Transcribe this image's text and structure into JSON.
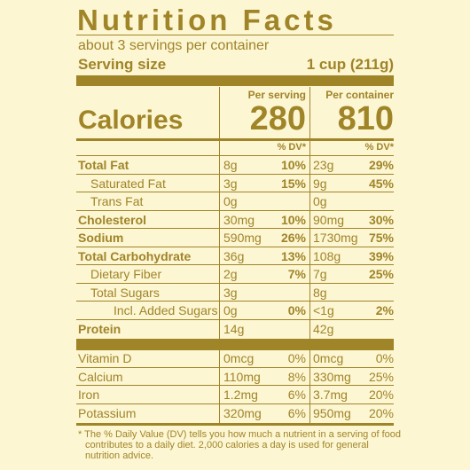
{
  "header": {
    "title": "Nutrition Facts",
    "servings": "about 3 servings per container",
    "serving_size_label": "Serving size",
    "serving_size": "1 cup (211g)"
  },
  "columns": [
    "Per serving",
    "Per container"
  ],
  "calories": {
    "label": "Calories",
    "per_serving": "280",
    "per_container": "810"
  },
  "dv_header": "% DV*",
  "nutrients": [
    {
      "name": "Total Fat",
      "bold": true,
      "level": 0,
      "per_serving": "8g",
      "per_serving_dv": "10%",
      "per_container": "23g",
      "per_container_dv": "29%"
    },
    {
      "name": "Saturated Fat",
      "bold": false,
      "level": 1,
      "per_serving": "3g",
      "per_serving_dv": "15%",
      "per_container": "9g",
      "per_container_dv": "45%"
    },
    {
      "name": "Trans Fat",
      "bold": false,
      "level": 1,
      "per_serving": "0g",
      "per_container": "0g"
    },
    {
      "name": "Cholesterol",
      "bold": true,
      "level": 0,
      "per_serving": "30mg",
      "per_serving_dv": "10%",
      "per_container": "90mg",
      "per_container_dv": "30%"
    },
    {
      "name": "Sodium",
      "bold": true,
      "level": 0,
      "per_serving": "590mg",
      "per_serving_dv": "26%",
      "per_container": "1730mg",
      "per_container_dv": "75%"
    },
    {
      "name": "Total Carbohydrate",
      "bold": true,
      "level": 0,
      "per_serving": "36g",
      "per_serving_dv": "13%",
      "per_container": "108g",
      "per_container_dv": "39%"
    },
    {
      "name": "Dietary Fiber",
      "bold": false,
      "level": 1,
      "per_serving": "2g",
      "per_serving_dv": "7%",
      "per_container": "7g",
      "per_container_dv": "25%"
    },
    {
      "name": "Total Sugars",
      "bold": false,
      "level": 1,
      "per_serving": "3g",
      "per_container": "8g"
    },
    {
      "name": "Incl. Added Sugars",
      "bold": false,
      "level": 2,
      "per_serving": "0g",
      "per_serving_dv": "0%",
      "per_container": "<1g",
      "per_container_dv": "2%"
    },
    {
      "name": "Protein",
      "bold": true,
      "level": 0,
      "per_serving": "14g",
      "per_container": "42g"
    }
  ],
  "vitamins": [
    {
      "name": "Vitamin D",
      "per_serving": "0mcg",
      "per_serving_dv": "0%",
      "per_container": "0mcg",
      "per_container_dv": "0%"
    },
    {
      "name": "Calcium",
      "per_serving": "110mg",
      "per_serving_dv": "8%",
      "per_container": "330mg",
      "per_container_dv": "25%"
    },
    {
      "name": "Iron",
      "per_serving": "1.2mg",
      "per_serving_dv": "6%",
      "per_container": "3.7mg",
      "per_container_dv": "20%"
    },
    {
      "name": "Potassium",
      "per_serving": "320mg",
      "per_serving_dv": "6%",
      "per_container": "950mg",
      "per_container_dv": "20%"
    }
  ],
  "footnote": "* The % Daily Value (DV) tells you how much a nutrient in a serving of food contributes to a daily diet. 2,000 calories a day is used for general nutrition advice."
}
